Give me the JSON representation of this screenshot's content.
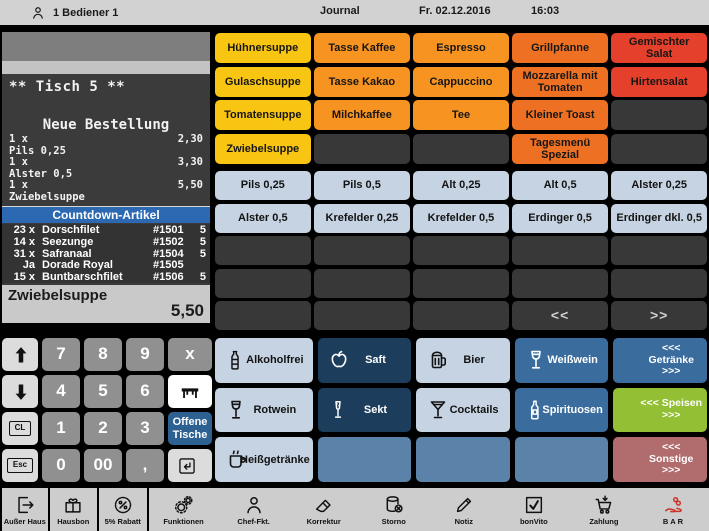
{
  "topbar": {
    "operator": "1 Bediener 1",
    "title": "Journal",
    "date": "Fr. 02.12.2016",
    "time": "16:03"
  },
  "receipt": {
    "table_header": "** Tisch 5 **",
    "order_header": "Neue Bestellung",
    "lines": [
      {
        "qty": "1 x",
        "price": "2,30",
        "name": "Pils 0,25"
      },
      {
        "qty": "1 x",
        "price": "3,30",
        "name": "Alster 0,5"
      },
      {
        "qty": "1 x",
        "price": "5,50",
        "name": "Zwiebelsuppe"
      }
    ],
    "countdown": {
      "title": "Countdown-Artikel",
      "items": [
        {
          "qty": "23 x",
          "name": "Dorschfilet",
          "code": "#1501",
          "max": "5"
        },
        {
          "qty": "14 x",
          "name": "Seezunge",
          "code": "#1502",
          "max": "5"
        },
        {
          "qty": "31 x",
          "name": "Safranaal",
          "code": "#1504",
          "max": "5"
        },
        {
          "qty": "Ja",
          "name": "Dorade Royal",
          "code": "#1505",
          "max": ""
        },
        {
          "qty": "15 x",
          "name": "Buntbarschfilet",
          "code": "#1506",
          "max": "5"
        }
      ]
    },
    "current_item": {
      "name": "Zwiebelsuppe",
      "price": "5,50"
    }
  },
  "article_grid": {
    "cells": [
      {
        "name": "article-huehnersuppe",
        "label": "Hühnersuppe",
        "style": "y"
      },
      {
        "name": "article-tasse-kaffee",
        "label": "Tasse Kaffee",
        "style": "o"
      },
      {
        "name": "article-espresso",
        "label": "Espresso",
        "style": "o"
      },
      {
        "name": "article-grillpfanne",
        "label": "Grillpfanne",
        "style": "do"
      },
      {
        "name": "article-gemischter-salat",
        "label": "Gemischter Salat",
        "style": "r"
      },
      {
        "name": "article-gulaschsuppe",
        "label": "Gulaschsuppe",
        "style": "y"
      },
      {
        "name": "article-tasse-kakao",
        "label": "Tasse Kakao",
        "style": "o"
      },
      {
        "name": "article-cappuccino",
        "label": "Cappuccino",
        "style": "o"
      },
      {
        "name": "article-mozzarella-mit-tomaten",
        "label": "Mozzarella mit Tomaten",
        "style": "do"
      },
      {
        "name": "article-hirtensalat",
        "label": "Hirtensalat",
        "style": "r"
      },
      {
        "name": "article-tomatensuppe",
        "label": "Tomatensuppe",
        "style": "y"
      },
      {
        "name": "article-milchkaffee",
        "label": "Milchkaffee",
        "style": "o"
      },
      {
        "name": "article-tee",
        "label": "Tee",
        "style": "o"
      },
      {
        "name": "article-kleiner-toast",
        "label": "Kleiner Toast",
        "style": "do"
      },
      {
        "name": "article-empty",
        "label": "",
        "style": "e"
      },
      {
        "name": "article-zwiebelsuppe",
        "label": "Zwiebelsuppe",
        "style": "y"
      },
      {
        "name": "article-empty",
        "label": "",
        "style": "e"
      },
      {
        "name": "article-empty",
        "label": "",
        "style": "e"
      },
      {
        "name": "article-tagesmenu-spezial",
        "label": "Tagesmenü Spezial",
        "style": "do"
      },
      {
        "name": "article-empty",
        "label": "",
        "style": "e"
      }
    ]
  },
  "beer_grid": {
    "cells": [
      {
        "name": "beer-pils-025",
        "label": "Pils 0,25",
        "style": "lb"
      },
      {
        "name": "beer-pils-05",
        "label": "Pils 0,5",
        "style": "lb"
      },
      {
        "name": "beer-alt-025",
        "label": "Alt 0,25",
        "style": "lb"
      },
      {
        "name": "beer-alt-05",
        "label": "Alt 0,5",
        "style": "lb"
      },
      {
        "name": "beer-alster-025",
        "label": "Alster 0,25",
        "style": "lb"
      },
      {
        "name": "beer-alster-05",
        "label": "Alster 0,5",
        "style": "lb"
      },
      {
        "name": "beer-krefelder-025",
        "label": "Krefelder 0,25",
        "style": "lb"
      },
      {
        "name": "beer-krefelder-05",
        "label": "Krefelder 0,5",
        "style": "lb"
      },
      {
        "name": "beer-erdinger-05",
        "label": "Erdinger 0,5",
        "style": "lb"
      },
      {
        "name": "beer-erdinger-dkl-05",
        "label": "Erdinger dkl. 0,5",
        "style": "lb"
      },
      {
        "name": "beer-empty",
        "label": "",
        "style": "e"
      },
      {
        "name": "beer-empty",
        "label": "",
        "style": "e"
      },
      {
        "name": "beer-empty",
        "label": "",
        "style": "e"
      },
      {
        "name": "beer-empty",
        "label": "",
        "style": "e"
      },
      {
        "name": "beer-empty",
        "label": "",
        "style": "e"
      },
      {
        "name": "beer-empty",
        "label": "",
        "style": "e"
      },
      {
        "name": "beer-empty",
        "label": "",
        "style": "e"
      },
      {
        "name": "beer-empty",
        "label": "",
        "style": "e"
      },
      {
        "name": "beer-empty",
        "label": "",
        "style": "e"
      },
      {
        "name": "beer-empty",
        "label": "",
        "style": "e"
      },
      {
        "name": "beer-empty",
        "label": "",
        "style": "e"
      },
      {
        "name": "beer-empty",
        "label": "",
        "style": "e"
      },
      {
        "name": "beer-empty",
        "label": "",
        "style": "e"
      },
      {
        "name": "page-prev-button",
        "label": "<<",
        "style": "pg"
      },
      {
        "name": "page-next-button",
        "label": ">>",
        "style": "pg"
      }
    ]
  },
  "numpad": {
    "cells": [
      {
        "name": "scroll-up-key",
        "icon": "arrow-up",
        "style": "lk"
      },
      {
        "name": "key-7",
        "label": "7",
        "style": "g"
      },
      {
        "name": "key-8",
        "label": "8",
        "style": "g"
      },
      {
        "name": "key-9",
        "label": "9",
        "style": "g"
      },
      {
        "name": "multiply-key",
        "label": "x",
        "style": "g"
      },
      {
        "name": "scroll-down-key",
        "icon": "arrow-down",
        "style": "lk"
      },
      {
        "name": "key-4",
        "label": "4",
        "style": "g"
      },
      {
        "name": "key-5",
        "label": "5",
        "style": "g"
      },
      {
        "name": "key-6",
        "label": "6",
        "style": "g"
      },
      {
        "name": "table-key",
        "icon": "table",
        "style": "wk"
      },
      {
        "name": "clear-key",
        "label": "CL",
        "style": "lk",
        "boxed": true
      },
      {
        "name": "key-1",
        "label": "1",
        "style": "g"
      },
      {
        "name": "key-2",
        "label": "2",
        "style": "g"
      },
      {
        "name": "key-3",
        "label": "3",
        "style": "g"
      },
      {
        "name": "open-tables-button",
        "label": "Offene Tische",
        "style": "bk"
      },
      {
        "name": "escape-key",
        "label": "Esc",
        "style": "lk",
        "boxed": true
      },
      {
        "name": "key-0",
        "label": "0",
        "style": "g"
      },
      {
        "name": "key-00",
        "label": "00",
        "style": "g"
      },
      {
        "name": "key-comma",
        "label": ",",
        "style": "g"
      },
      {
        "name": "enter-key",
        "icon": "enter",
        "style": "lk"
      }
    ]
  },
  "category_grid": {
    "cells": [
      {
        "name": "category-alkoholfrei",
        "label": "Alkoholfrei",
        "icon": "bottle",
        "style": "cat-light"
      },
      {
        "name": "category-saft",
        "label": "Saft",
        "icon": "apple",
        "style": "cat-navy"
      },
      {
        "name": "category-bier",
        "label": "Bier",
        "icon": "beer",
        "style": "cat-light"
      },
      {
        "name": "category-weisswein",
        "label": "Weißwein",
        "icon": "wine",
        "style": "cat-blue"
      },
      {
        "name": "nav-getraenke",
        "label": "<<< Getränke >>>",
        "style": "cat-blue nav"
      },
      {
        "name": "category-rotwein",
        "label": "Rotwein",
        "icon": "wine",
        "style": "cat-light"
      },
      {
        "name": "category-sekt",
        "label": "Sekt",
        "icon": "flute",
        "style": "cat-navy"
      },
      {
        "name": "category-cocktails",
        "label": "Cocktails",
        "icon": "martini",
        "style": "cat-light"
      },
      {
        "name": "category-spirituosen",
        "label": "Spirituosen",
        "icon": "spirit",
        "style": "cat-blue"
      },
      {
        "name": "nav-speisen",
        "label": "<<< Speisen >>>",
        "style": "cat-green nav"
      },
      {
        "name": "category-heissgetraenke",
        "label": "Heißgetränke",
        "icon": "cup",
        "style": "cat-light"
      },
      {
        "name": "category-empty",
        "label": "",
        "style": "cat-slate"
      },
      {
        "name": "category-empty",
        "label": "",
        "style": "cat-slate"
      },
      {
        "name": "category-empty",
        "label": "",
        "style": "cat-slate"
      },
      {
        "name": "nav-sonstige",
        "label": "<<< Sonstige >>>",
        "style": "cat-mauve nav"
      }
    ]
  },
  "toolbar": {
    "items": [
      {
        "name": "ausser-haus-button",
        "label": "Außer Haus",
        "icon": "exit-door",
        "boxed": true
      },
      {
        "name": "hausbon-button",
        "label": "Hausbon",
        "icon": "gift",
        "boxed": true
      },
      {
        "name": "rabatt-button",
        "label": "5% Rabatt",
        "icon": "percent",
        "boxed": true
      },
      {
        "name": "funktionen-button",
        "label": "Funktionen",
        "icon": "gears"
      },
      {
        "name": "chef-fkt-button",
        "label": "Chef-Fkt.",
        "icon": "person"
      },
      {
        "name": "korrektur-button",
        "label": "Korrektur",
        "icon": "eraser"
      },
      {
        "name": "storno-button",
        "label": "Storno",
        "icon": "storno"
      },
      {
        "name": "notiz-button",
        "label": "Notiz",
        "icon": "pencil"
      },
      {
        "name": "bonvito-button",
        "label": "bonVito",
        "icon": "check"
      },
      {
        "name": "zahlung-button",
        "label": "Zahlung",
        "icon": "cart"
      },
      {
        "name": "bar-button",
        "label": "BAR",
        "icon": "hand-coins",
        "accent": true
      }
    ]
  },
  "colors": {
    "yellow": "#f9c513",
    "orange": "#f79321",
    "dark_orange": "#ee7123",
    "red": "#e5402b",
    "beer_button": "#c5d3e2",
    "navy": "#1d3d5c",
    "blue": "#3a6d9e",
    "slate": "#5b83aa",
    "green": "#93bf34",
    "mauve": "#b16d6d",
    "countdown_banner": "#2c69b2",
    "numpad_blue": "#2d6191",
    "bar_icon_red": "#cc3327",
    "topbar_bg": "#d2d2d2"
  }
}
